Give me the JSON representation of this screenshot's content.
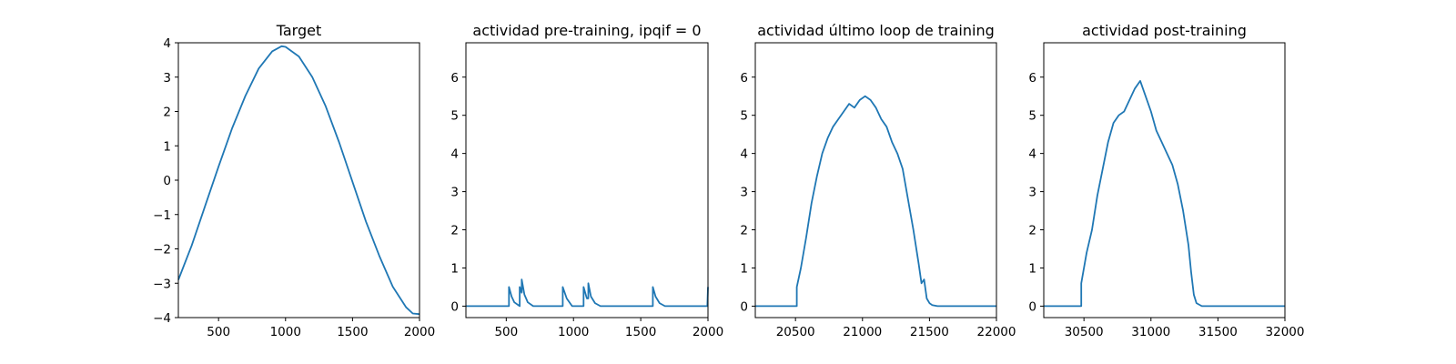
{
  "chart_data": [
    {
      "type": "line",
      "title": "Target",
      "xlim": [
        200,
        2000
      ],
      "ylim": [
        -4,
        4
      ],
      "xticks": [
        500,
        1000,
        1500,
        2000
      ],
      "xtick_labels": [
        "500",
        "1000",
        "1500",
        "2000"
      ],
      "yticks": [
        -4,
        -3,
        -2,
        -1,
        0,
        1,
        2,
        3,
        4
      ],
      "ytick_labels": [
        "−4",
        "−3",
        "−2",
        "−1",
        "0",
        "1",
        "2",
        "3",
        "4"
      ],
      "color": "#1f77b4",
      "series": [
        {
          "x": [
            200,
            300,
            400,
            500,
            600,
            700,
            800,
            900,
            970,
            1000,
            1100,
            1200,
            1300,
            1400,
            1500,
            1600,
            1700,
            1800,
            1900,
            1950,
            2000
          ],
          "y": [
            -2.9,
            -1.9,
            -0.75,
            0.4,
            1.5,
            2.45,
            3.25,
            3.75,
            3.9,
            3.88,
            3.6,
            3.0,
            2.15,
            1.1,
            -0.05,
            -1.2,
            -2.2,
            -3.1,
            -3.7,
            -3.88,
            -3.9
          ]
        }
      ]
    },
    {
      "type": "line",
      "title": "actividad pre-training, ipqif = 0",
      "xlim": [
        200,
        2000
      ],
      "ylim": [
        -0.3,
        6.9
      ],
      "xticks": [
        500,
        1000,
        1500,
        2000
      ],
      "xtick_labels": [
        "500",
        "1000",
        "1500",
        "2000"
      ],
      "yticks": [
        0,
        1,
        2,
        3,
        4,
        5,
        6
      ],
      "ytick_labels": [
        "0",
        "1",
        "2",
        "3",
        "4",
        "5",
        "6"
      ],
      "color": "#1f77b4",
      "series": [
        {
          "x": [
            200,
            520,
            520,
            540,
            560,
            600,
            600,
            615,
            615,
            635,
            660,
            700,
            920,
            920,
            950,
            990,
            1075,
            1075,
            1095,
            1100,
            1110,
            1110,
            1130,
            1160,
            1200,
            1590,
            1590,
            1610,
            1640,
            1680,
            1995,
            2000
          ],
          "y": [
            0,
            0,
            0.5,
            0.25,
            0.1,
            0,
            0.5,
            0.35,
            0.7,
            0.3,
            0.1,
            0,
            0,
            0.5,
            0.2,
            0,
            0,
            0.5,
            0.25,
            0.2,
            0.2,
            0.6,
            0.25,
            0.08,
            0,
            0,
            0.5,
            0.25,
            0.08,
            0,
            0,
            0.5
          ]
        }
      ]
    },
    {
      "type": "line",
      "title": "actividad último loop de training",
      "xlim": [
        20200,
        22000
      ],
      "ylim": [
        -0.3,
        6.9
      ],
      "xticks": [
        20500,
        21000,
        21500,
        22000
      ],
      "xtick_labels": [
        "20500",
        "21000",
        "21500",
        "22000"
      ],
      "yticks": [
        0,
        1,
        2,
        3,
        4,
        5,
        6
      ],
      "ytick_labels": [
        "0",
        "1",
        "2",
        "3",
        "4",
        "5",
        "6"
      ],
      "color": "#1f77b4",
      "series": [
        {
          "x": [
            20200,
            20510,
            20510,
            20540,
            20580,
            20620,
            20660,
            20700,
            20740,
            20780,
            20820,
            20860,
            20900,
            20940,
            20980,
            21020,
            21060,
            21100,
            21140,
            21180,
            21220,
            21260,
            21300,
            21340,
            21380,
            21420,
            21440,
            21460,
            21480,
            21500,
            21520,
            21560,
            22000
          ],
          "y": [
            0,
            0,
            0.5,
            1.0,
            1.8,
            2.7,
            3.4,
            4.0,
            4.4,
            4.7,
            4.9,
            5.1,
            5.3,
            5.2,
            5.4,
            5.5,
            5.4,
            5.2,
            4.9,
            4.7,
            4.3,
            4.0,
            3.6,
            2.8,
            2.0,
            1.1,
            0.6,
            0.7,
            0.2,
            0.08,
            0.03,
            0,
            0
          ]
        }
      ]
    },
    {
      "type": "line",
      "title": "actividad post-training",
      "xlim": [
        30200,
        32000
      ],
      "ylim": [
        -0.3,
        6.9
      ],
      "xticks": [
        30500,
        31000,
        31500,
        32000
      ],
      "xtick_labels": [
        "30500",
        "31000",
        "31500",
        "32000"
      ],
      "yticks": [
        0,
        1,
        2,
        3,
        4,
        5,
        6
      ],
      "ytick_labels": [
        "0",
        "1",
        "2",
        "3",
        "4",
        "5",
        "6"
      ],
      "color": "#1f77b4",
      "series": [
        {
          "x": [
            30200,
            30480,
            30480,
            30520,
            30560,
            30600,
            30640,
            30680,
            30720,
            30760,
            30800,
            30840,
            30880,
            30920,
            30960,
            31000,
            31040,
            31080,
            31120,
            31160,
            31200,
            31240,
            31280,
            31300,
            31320,
            31340,
            31380,
            32000
          ],
          "y": [
            0,
            0,
            0.6,
            1.4,
            2.0,
            2.9,
            3.6,
            4.3,
            4.8,
            5.0,
            5.1,
            5.4,
            5.7,
            5.9,
            5.5,
            5.1,
            4.6,
            4.3,
            4.0,
            3.7,
            3.2,
            2.5,
            1.6,
            0.9,
            0.3,
            0.08,
            0,
            0
          ]
        }
      ]
    }
  ]
}
